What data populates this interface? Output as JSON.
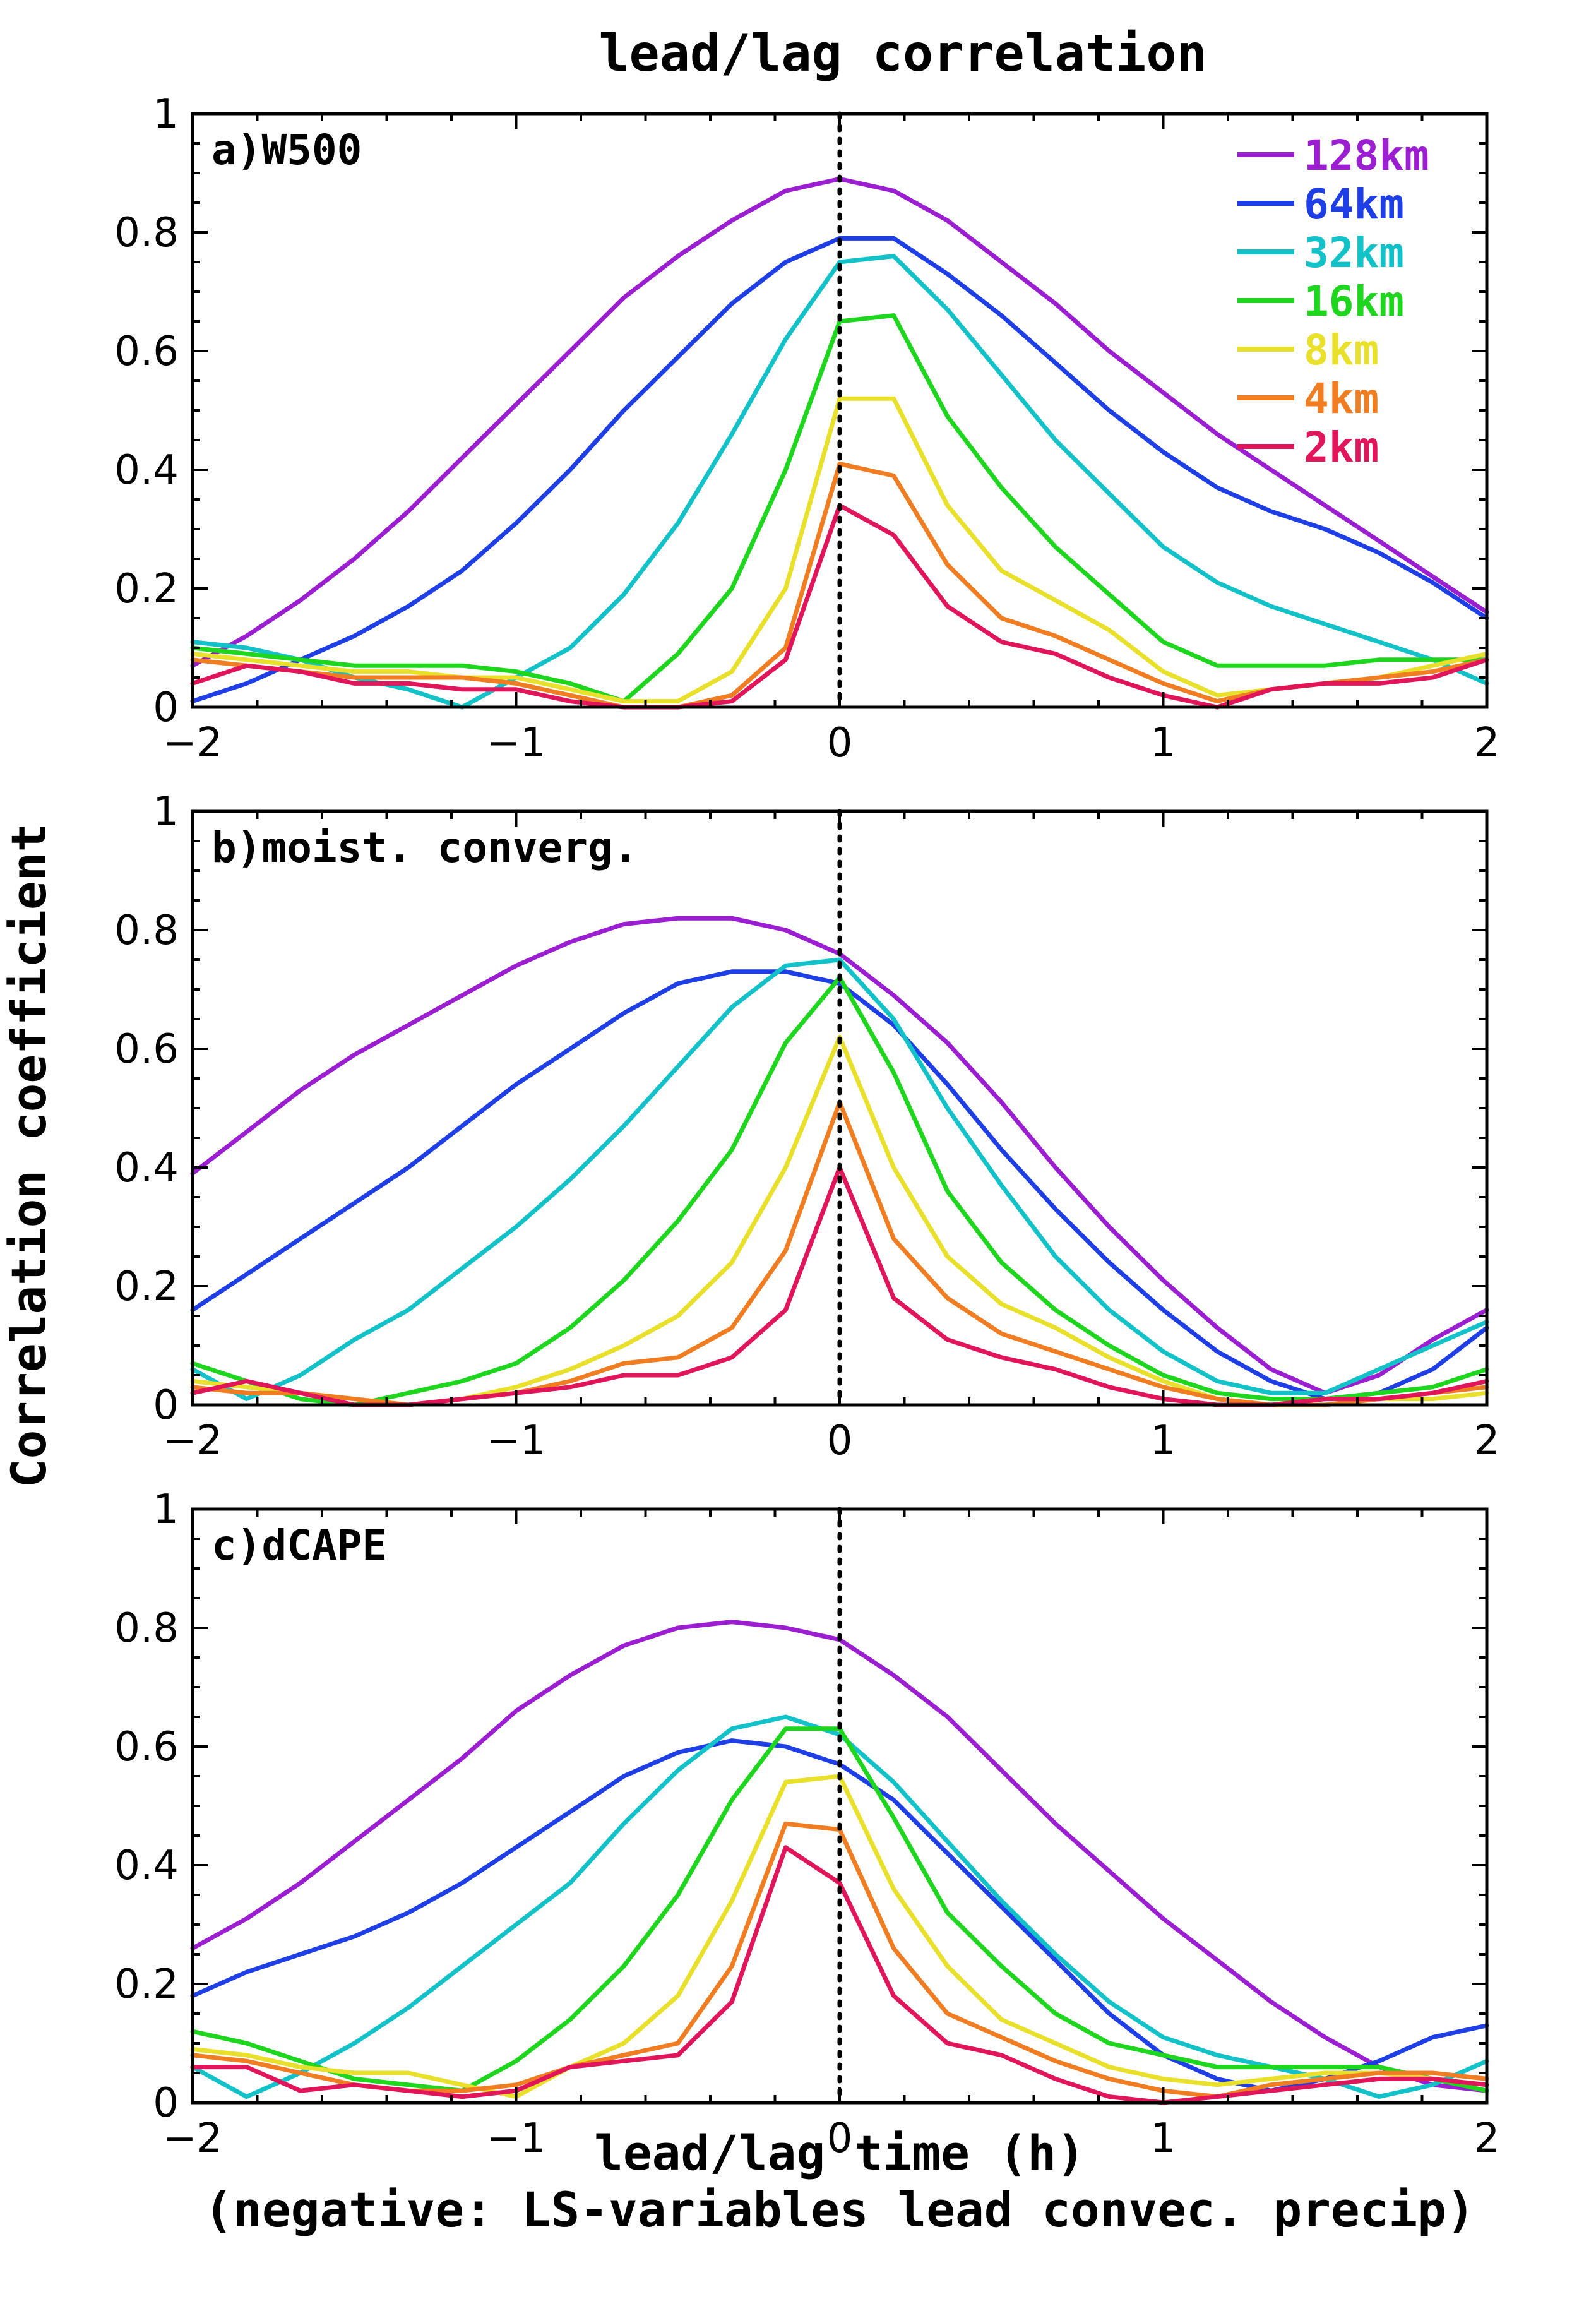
{
  "figure": {
    "title": "lead/lag correlation",
    "ylabel": "Correlation coefficient",
    "xlabel_line1": "lead/lag time (h)",
    "xlabel_line2": "(negative: LS-variables lead convec. precip)"
  },
  "legend": [
    {
      "name": "128km",
      "color": "#9b1fd1"
    },
    {
      "name": "64km",
      "color": "#1f3fe6"
    },
    {
      "name": "32km",
      "color": "#13c2c9"
    },
    {
      "name": "16km",
      "color": "#1ed61e"
    },
    {
      "name": "8km",
      "color": "#e8e02a"
    },
    {
      "name": "4km",
      "color": "#f07d22"
    },
    {
      "name": "2km",
      "color": "#e0155a"
    }
  ],
  "chart_data": [
    {
      "type": "line",
      "title": "a)W500",
      "xlim": [
        -2,
        2
      ],
      "ylim": [
        0,
        1
      ],
      "xticks": [
        "−2",
        "−1",
        "0",
        "1",
        "2"
      ],
      "yticks": [
        "0",
        "0.2",
        "0.4",
        "0.6",
        "0.8",
        "1"
      ],
      "x": [
        -2,
        -1.833,
        -1.667,
        -1.5,
        -1.333,
        -1.167,
        -1,
        -0.833,
        -0.667,
        -0.5,
        -0.333,
        -0.167,
        0,
        0.167,
        0.333,
        0.5,
        0.667,
        0.833,
        1,
        1.167,
        1.333,
        1.5,
        1.667,
        1.833,
        2
      ],
      "series": [
        {
          "name": "128km",
          "values": [
            0.07,
            0.12,
            0.18,
            0.25,
            0.33,
            0.42,
            0.51,
            0.6,
            0.69,
            0.76,
            0.82,
            0.87,
            0.89,
            0.87,
            0.82,
            0.75,
            0.68,
            0.6,
            0.53,
            0.46,
            0.4,
            0.34,
            0.28,
            0.22,
            0.16
          ]
        },
        {
          "name": "64km",
          "values": [
            0.01,
            0.04,
            0.08,
            0.12,
            0.17,
            0.23,
            0.31,
            0.4,
            0.5,
            0.59,
            0.68,
            0.75,
            0.79,
            0.79,
            0.73,
            0.66,
            0.58,
            0.5,
            0.43,
            0.37,
            0.33,
            0.3,
            0.26,
            0.21,
            0.15
          ]
        },
        {
          "name": "32km",
          "values": [
            0.11,
            0.1,
            0.08,
            0.05,
            0.03,
            0.0,
            0.05,
            0.1,
            0.19,
            0.31,
            0.46,
            0.62,
            0.75,
            0.76,
            0.67,
            0.56,
            0.45,
            0.36,
            0.27,
            0.21,
            0.17,
            0.14,
            0.11,
            0.08,
            0.04
          ]
        },
        {
          "name": "16km",
          "values": [
            0.1,
            0.09,
            0.08,
            0.07,
            0.07,
            0.07,
            0.06,
            0.04,
            0.01,
            0.09,
            0.2,
            0.4,
            0.65,
            0.66,
            0.49,
            0.37,
            0.27,
            0.19,
            0.11,
            0.07,
            0.07,
            0.07,
            0.08,
            0.08,
            0.08
          ]
        },
        {
          "name": "8km",
          "values": [
            0.09,
            0.08,
            0.07,
            0.06,
            0.06,
            0.05,
            0.05,
            0.03,
            0.01,
            0.01,
            0.06,
            0.2,
            0.52,
            0.52,
            0.34,
            0.23,
            0.18,
            0.13,
            0.06,
            0.02,
            0.03,
            0.04,
            0.05,
            0.07,
            0.09
          ]
        },
        {
          "name": "4km",
          "values": [
            0.08,
            0.07,
            0.06,
            0.05,
            0.05,
            0.05,
            0.04,
            0.02,
            0.0,
            0.0,
            0.02,
            0.1,
            0.41,
            0.39,
            0.24,
            0.15,
            0.12,
            0.08,
            0.04,
            0.01,
            0.03,
            0.04,
            0.05,
            0.06,
            0.08
          ]
        },
        {
          "name": "2km",
          "values": [
            0.04,
            0.07,
            0.06,
            0.04,
            0.04,
            0.03,
            0.03,
            0.01,
            0.0,
            0.0,
            0.01,
            0.08,
            0.34,
            0.29,
            0.17,
            0.11,
            0.09,
            0.05,
            0.02,
            0.0,
            0.03,
            0.04,
            0.04,
            0.05,
            0.08
          ]
        }
      ]
    },
    {
      "type": "line",
      "title": "b)moist. converg.",
      "xlim": [
        -2,
        2
      ],
      "ylim": [
        0,
        1
      ],
      "xticks": [
        "−2",
        "−1",
        "0",
        "1",
        "2"
      ],
      "yticks": [
        "0",
        "0.2",
        "0.4",
        "0.6",
        "0.8",
        "1"
      ],
      "x": [
        -2,
        -1.833,
        -1.667,
        -1.5,
        -1.333,
        -1.167,
        -1,
        -0.833,
        -0.667,
        -0.5,
        -0.333,
        -0.167,
        0,
        0.167,
        0.333,
        0.5,
        0.667,
        0.833,
        1,
        1.167,
        1.333,
        1.5,
        1.667,
        1.833,
        2
      ],
      "series": [
        {
          "name": "128km",
          "values": [
            0.39,
            0.46,
            0.53,
            0.59,
            0.64,
            0.69,
            0.74,
            0.78,
            0.81,
            0.82,
            0.82,
            0.8,
            0.76,
            0.69,
            0.61,
            0.51,
            0.4,
            0.3,
            0.21,
            0.13,
            0.06,
            0.02,
            0.05,
            0.11,
            0.16
          ]
        },
        {
          "name": "64km",
          "values": [
            0.16,
            0.22,
            0.28,
            0.34,
            0.4,
            0.47,
            0.54,
            0.6,
            0.66,
            0.71,
            0.73,
            0.73,
            0.71,
            0.64,
            0.54,
            0.43,
            0.33,
            0.24,
            0.16,
            0.09,
            0.04,
            0.01,
            0.02,
            0.06,
            0.13
          ]
        },
        {
          "name": "32km",
          "values": [
            0.06,
            0.01,
            0.05,
            0.11,
            0.16,
            0.23,
            0.3,
            0.38,
            0.47,
            0.57,
            0.67,
            0.74,
            0.75,
            0.65,
            0.5,
            0.37,
            0.25,
            0.16,
            0.09,
            0.04,
            0.02,
            0.02,
            0.06,
            0.1,
            0.14
          ]
        },
        {
          "name": "16km",
          "values": [
            0.07,
            0.04,
            0.01,
            0.0,
            0.02,
            0.04,
            0.07,
            0.13,
            0.21,
            0.31,
            0.43,
            0.61,
            0.72,
            0.56,
            0.36,
            0.24,
            0.16,
            0.1,
            0.05,
            0.02,
            0.01,
            0.01,
            0.02,
            0.03,
            0.06
          ]
        },
        {
          "name": "8km",
          "values": [
            0.04,
            0.03,
            0.02,
            0.01,
            0.0,
            0.01,
            0.03,
            0.06,
            0.1,
            0.15,
            0.24,
            0.4,
            0.62,
            0.4,
            0.25,
            0.17,
            0.13,
            0.08,
            0.04,
            0.01,
            0.0,
            0.0,
            0.01,
            0.01,
            0.02
          ]
        },
        {
          "name": "4km",
          "values": [
            0.03,
            0.02,
            0.02,
            0.01,
            0.0,
            0.01,
            0.02,
            0.04,
            0.07,
            0.08,
            0.13,
            0.26,
            0.51,
            0.28,
            0.18,
            0.12,
            0.09,
            0.06,
            0.03,
            0.01,
            0.0,
            0.0,
            0.01,
            0.02,
            0.03
          ]
        },
        {
          "name": "2km",
          "values": [
            0.02,
            0.04,
            0.02,
            0.0,
            0.0,
            0.01,
            0.02,
            0.03,
            0.05,
            0.05,
            0.08,
            0.16,
            0.4,
            0.18,
            0.11,
            0.08,
            0.06,
            0.03,
            0.01,
            0.0,
            0.0,
            0.01,
            0.01,
            0.02,
            0.04
          ]
        }
      ]
    },
    {
      "type": "line",
      "title": "c)dCAPE",
      "xlim": [
        -2,
        2
      ],
      "ylim": [
        0,
        1
      ],
      "xticks": [
        "−2",
        "−1",
        "0",
        "1",
        "2"
      ],
      "yticks": [
        "0",
        "0.2",
        "0.4",
        "0.6",
        "0.8",
        "1"
      ],
      "x": [
        -2,
        -1.833,
        -1.667,
        -1.5,
        -1.333,
        -1.167,
        -1,
        -0.833,
        -0.667,
        -0.5,
        -0.333,
        -0.167,
        0,
        0.167,
        0.333,
        0.5,
        0.667,
        0.833,
        1,
        1.167,
        1.333,
        1.5,
        1.667,
        1.833,
        2
      ],
      "series": [
        {
          "name": "128km",
          "values": [
            0.26,
            0.31,
            0.37,
            0.44,
            0.51,
            0.58,
            0.66,
            0.72,
            0.77,
            0.8,
            0.81,
            0.8,
            0.78,
            0.72,
            0.65,
            0.56,
            0.47,
            0.39,
            0.31,
            0.24,
            0.17,
            0.11,
            0.06,
            0.03,
            0.02
          ]
        },
        {
          "name": "64km",
          "values": [
            0.18,
            0.22,
            0.25,
            0.28,
            0.32,
            0.37,
            0.43,
            0.49,
            0.55,
            0.59,
            0.61,
            0.6,
            0.57,
            0.51,
            0.42,
            0.33,
            0.24,
            0.15,
            0.08,
            0.04,
            0.02,
            0.04,
            0.07,
            0.11,
            0.13
          ]
        },
        {
          "name": "32km",
          "values": [
            0.06,
            0.01,
            0.05,
            0.1,
            0.16,
            0.23,
            0.3,
            0.37,
            0.47,
            0.56,
            0.63,
            0.65,
            0.62,
            0.54,
            0.44,
            0.34,
            0.25,
            0.17,
            0.11,
            0.08,
            0.06,
            0.04,
            0.01,
            0.03,
            0.07
          ]
        },
        {
          "name": "16km",
          "values": [
            0.12,
            0.1,
            0.07,
            0.04,
            0.03,
            0.02,
            0.07,
            0.14,
            0.23,
            0.35,
            0.51,
            0.63,
            0.63,
            0.48,
            0.32,
            0.23,
            0.15,
            0.1,
            0.08,
            0.06,
            0.06,
            0.06,
            0.06,
            0.04,
            0.02
          ]
        },
        {
          "name": "8km",
          "values": [
            0.09,
            0.08,
            0.06,
            0.05,
            0.05,
            0.03,
            0.01,
            0.06,
            0.1,
            0.18,
            0.34,
            0.54,
            0.55,
            0.36,
            0.23,
            0.14,
            0.1,
            0.06,
            0.04,
            0.03,
            0.04,
            0.05,
            0.05,
            0.04,
            0.03
          ]
        },
        {
          "name": "4km",
          "values": [
            0.08,
            0.07,
            0.05,
            0.03,
            0.02,
            0.02,
            0.03,
            0.06,
            0.08,
            0.1,
            0.23,
            0.47,
            0.46,
            0.26,
            0.15,
            0.11,
            0.07,
            0.04,
            0.02,
            0.01,
            0.03,
            0.04,
            0.05,
            0.05,
            0.04
          ]
        },
        {
          "name": "2km",
          "values": [
            0.06,
            0.06,
            0.02,
            0.03,
            0.02,
            0.01,
            0.02,
            0.06,
            0.07,
            0.08,
            0.17,
            0.43,
            0.37,
            0.18,
            0.1,
            0.08,
            0.04,
            0.01,
            0.0,
            0.01,
            0.02,
            0.03,
            0.04,
            0.04,
            0.03
          ]
        }
      ]
    }
  ]
}
